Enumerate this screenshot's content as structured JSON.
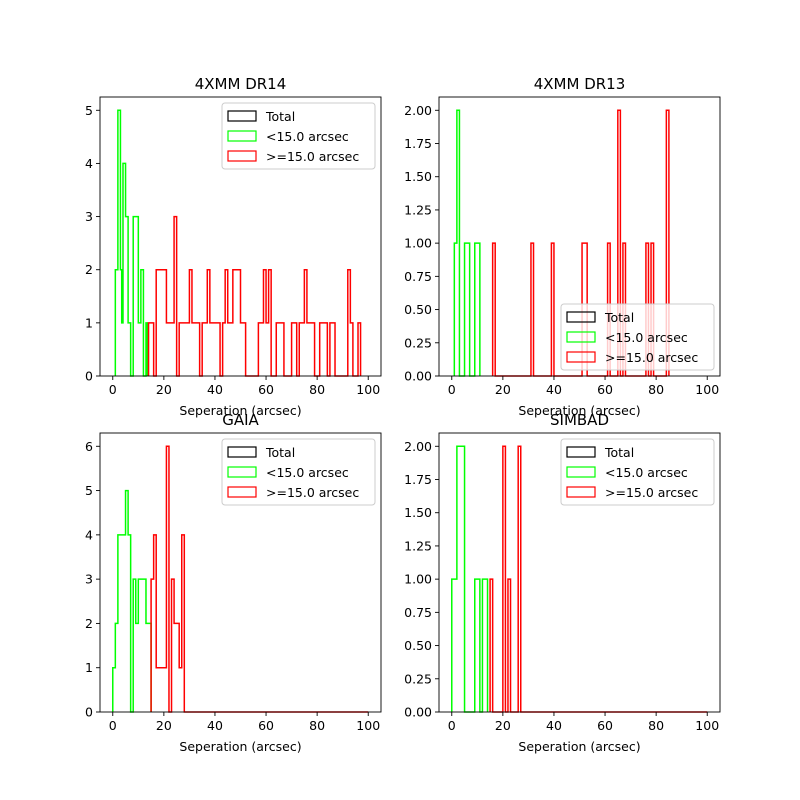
{
  "chart_data": [
    {
      "type": "histogram-step",
      "title": "4XMM DR14",
      "xlabel": "Seperation (arcsec)",
      "ylabel": "",
      "xlim": [
        -5,
        105
      ],
      "ylim": [
        0,
        5.25
      ],
      "xticks": [
        0,
        20,
        40,
        60,
        80,
        100
      ],
      "yticks": [
        0,
        1,
        2,
        3,
        4,
        5
      ],
      "ytick_format": "int",
      "legend_position": "upper right",
      "series": [
        {
          "name": "Total",
          "color": "#000000",
          "points": []
        },
        {
          "name": "<15.0 arcsec",
          "color": "#00ff00",
          "points": [
            [
              1,
              0
            ],
            [
              1,
              2
            ],
            [
              2,
              2
            ],
            [
              2,
              5
            ],
            [
              3,
              5
            ],
            [
              3,
              2
            ],
            [
              3.5,
              2
            ],
            [
              3.5,
              1
            ],
            [
              4,
              1
            ],
            [
              4,
              4
            ],
            [
              5,
              4
            ],
            [
              5,
              3
            ],
            [
              6,
              3
            ],
            [
              6,
              1
            ],
            [
              7,
              1
            ],
            [
              7,
              0
            ],
            [
              8,
              0
            ],
            [
              8,
              3
            ],
            [
              10,
              3
            ],
            [
              10,
              1
            ],
            [
              11,
              1
            ],
            [
              11,
              2
            ],
            [
              12,
              2
            ],
            [
              12,
              0
            ],
            [
              13,
              0
            ],
            [
              13,
              1
            ],
            [
              13.5,
              1
            ],
            [
              13.5,
              0
            ]
          ]
        },
        {
          "name": ">=15.0 arcsec",
          "color": "#ff0000",
          "points": [
            [
              14,
              0
            ],
            [
              14,
              1
            ],
            [
              16,
              1
            ],
            [
              16,
              0
            ],
            [
              17,
              0
            ],
            [
              17,
              2
            ],
            [
              21,
              2
            ],
            [
              21,
              1
            ],
            [
              24,
              1
            ],
            [
              24,
              3
            ],
            [
              25,
              3
            ],
            [
              25,
              0
            ],
            [
              26,
              0
            ],
            [
              26,
              1
            ],
            [
              30,
              1
            ],
            [
              30,
              2
            ],
            [
              31,
              2
            ],
            [
              31,
              1
            ],
            [
              34,
              1
            ],
            [
              34,
              0
            ],
            [
              35,
              0
            ],
            [
              35,
              1
            ],
            [
              37,
              1
            ],
            [
              37,
              2
            ],
            [
              38,
              2
            ],
            [
              38,
              1
            ],
            [
              42,
              1
            ],
            [
              42,
              0
            ],
            [
              43,
              0
            ],
            [
              43,
              1
            ],
            [
              44,
              1
            ],
            [
              44,
              2
            ],
            [
              45,
              2
            ],
            [
              45,
              1
            ],
            [
              47,
              1
            ],
            [
              47,
              2
            ],
            [
              50,
              2
            ],
            [
              50,
              1
            ],
            [
              52,
              1
            ],
            [
              52,
              0
            ],
            [
              57,
              0
            ],
            [
              57,
              1
            ],
            [
              59,
              1
            ],
            [
              59,
              2
            ],
            [
              60,
              2
            ],
            [
              60,
              1
            ],
            [
              61,
              1
            ],
            [
              61,
              2
            ],
            [
              62,
              2
            ],
            [
              62,
              0
            ],
            [
              64,
              0
            ],
            [
              64,
              1
            ],
            [
              67,
              1
            ],
            [
              67,
              0
            ],
            [
              70,
              0
            ],
            [
              70,
              1
            ],
            [
              72,
              1
            ],
            [
              72,
              0
            ],
            [
              73,
              0
            ],
            [
              73,
              1
            ],
            [
              75,
              1
            ],
            [
              75,
              2
            ],
            [
              76,
              2
            ],
            [
              76,
              1
            ],
            [
              79,
              1
            ],
            [
              79,
              0
            ],
            [
              81,
              0
            ],
            [
              81,
              1
            ],
            [
              84,
              1
            ],
            [
              84,
              0
            ],
            [
              85,
              0
            ],
            [
              85,
              1
            ],
            [
              87,
              1
            ],
            [
              87,
              0
            ],
            [
              92,
              0
            ],
            [
              92,
              2
            ],
            [
              93,
              2
            ],
            [
              93,
              1
            ],
            [
              94,
              1
            ],
            [
              94,
              0
            ],
            [
              96,
              0
            ],
            [
              96,
              1
            ],
            [
              97,
              1
            ],
            [
              97,
              0
            ]
          ]
        }
      ]
    },
    {
      "type": "histogram-step",
      "title": "4XMM DR13",
      "xlabel": "Seperation (arcsec)",
      "ylabel": "",
      "xlim": [
        -5,
        105
      ],
      "ylim": [
        0,
        2.1
      ],
      "xticks": [
        0,
        20,
        40,
        60,
        80,
        100
      ],
      "yticks": [
        0,
        0.25,
        0.5,
        0.75,
        1.0,
        1.25,
        1.5,
        1.75,
        2.0
      ],
      "ytick_format": "2dp",
      "legend_position": "lower right",
      "series": [
        {
          "name": "Total",
          "color": "#000000",
          "points": []
        },
        {
          "name": "<15.0 arcsec",
          "color": "#00ff00",
          "points": [
            [
              1,
              0
            ],
            [
              1,
              1
            ],
            [
              2,
              1
            ],
            [
              2,
              2
            ],
            [
              3,
              2
            ],
            [
              3,
              0
            ],
            [
              5,
              0
            ],
            [
              5,
              1
            ],
            [
              7,
              1
            ],
            [
              7,
              0
            ],
            [
              9,
              0
            ],
            [
              9,
              1
            ],
            [
              11,
              1
            ],
            [
              11,
              0
            ]
          ]
        },
        {
          "name": ">=15.0 arcsec",
          "color": "#ff0000",
          "points": [
            [
              16,
              0
            ],
            [
              16,
              1
            ],
            [
              17,
              1
            ],
            [
              17,
              0
            ],
            [
              31,
              0
            ],
            [
              31,
              1
            ],
            [
              32,
              1
            ],
            [
              32,
              0
            ],
            [
              39,
              0
            ],
            [
              39,
              1
            ],
            [
              40,
              1
            ],
            [
              40,
              0
            ],
            [
              51,
              0
            ],
            [
              51,
              1
            ],
            [
              53,
              1
            ],
            [
              53,
              0
            ],
            [
              61,
              0
            ],
            [
              61,
              1
            ],
            [
              62,
              1
            ],
            [
              62,
              0
            ],
            [
              65,
              0
            ],
            [
              65,
              2
            ],
            [
              66,
              2
            ],
            [
              66,
              0
            ],
            [
              67,
              0
            ],
            [
              67,
              1
            ],
            [
              68,
              1
            ],
            [
              68,
              0
            ],
            [
              76,
              0
            ],
            [
              76,
              1
            ],
            [
              77,
              1
            ],
            [
              77,
              0
            ],
            [
              78,
              0
            ],
            [
              78,
              1
            ],
            [
              79,
              1
            ],
            [
              79,
              0
            ],
            [
              84,
              0
            ],
            [
              84,
              2
            ],
            [
              85,
              2
            ],
            [
              85,
              0
            ]
          ]
        }
      ]
    },
    {
      "type": "histogram-step",
      "title": "GAIA",
      "xlabel": "Seperation (arcsec)",
      "ylabel": "",
      "xlim": [
        -5,
        105
      ],
      "ylim": [
        0,
        6.3
      ],
      "xticks": [
        0,
        20,
        40,
        60,
        80,
        100
      ],
      "yticks": [
        0,
        1,
        2,
        3,
        4,
        5,
        6
      ],
      "ytick_format": "int",
      "legend_position": "upper right",
      "series": [
        {
          "name": "Total",
          "color": "#000000",
          "points": []
        },
        {
          "name": "<15.0 arcsec",
          "color": "#00ff00",
          "points": [
            [
              0,
              0
            ],
            [
              0,
              1
            ],
            [
              1,
              1
            ],
            [
              1,
              2
            ],
            [
              2,
              2
            ],
            [
              2,
              4
            ],
            [
              5,
              4
            ],
            [
              5,
              5
            ],
            [
              6,
              5
            ],
            [
              6,
              4
            ],
            [
              7,
              4
            ],
            [
              7,
              0
            ],
            [
              8,
              0
            ],
            [
              8,
              3
            ],
            [
              9,
              3
            ],
            [
              9,
              2
            ],
            [
              10,
              2
            ],
            [
              10,
              3
            ],
            [
              13,
              3
            ],
            [
              13,
              2
            ],
            [
              15,
              2
            ],
            [
              15,
              0
            ]
          ]
        },
        {
          "name": ">=15.0 arcsec",
          "color": "#ff0000",
          "points": [
            [
              15,
              0
            ],
            [
              15,
              3
            ],
            [
              16,
              3
            ],
            [
              16,
              4
            ],
            [
              17,
              4
            ],
            [
              17,
              1
            ],
            [
              21,
              1
            ],
            [
              21,
              6
            ],
            [
              22,
              6
            ],
            [
              22,
              0
            ],
            [
              23,
              0
            ],
            [
              23,
              3
            ],
            [
              24,
              3
            ],
            [
              24,
              2
            ],
            [
              26,
              2
            ],
            [
              26,
              1
            ],
            [
              27,
              1
            ],
            [
              27,
              4
            ],
            [
              28,
              4
            ],
            [
              28,
              0
            ],
            [
              100,
              0
            ]
          ]
        }
      ]
    },
    {
      "type": "histogram-step",
      "title": "SIMBAD",
      "xlabel": "Seperation (arcsec)",
      "ylabel": "",
      "xlim": [
        -5,
        105
      ],
      "ylim": [
        0,
        2.1
      ],
      "xticks": [
        0,
        20,
        40,
        60,
        80,
        100
      ],
      "yticks": [
        0,
        0.25,
        0.5,
        0.75,
        1.0,
        1.25,
        1.5,
        1.75,
        2.0
      ],
      "ytick_format": "2dp",
      "legend_position": "upper right",
      "series": [
        {
          "name": "Total",
          "color": "#000000",
          "points": []
        },
        {
          "name": "<15.0 arcsec",
          "color": "#00ff00",
          "points": [
            [
              0,
              0
            ],
            [
              0,
              1
            ],
            [
              2,
              1
            ],
            [
              2,
              2
            ],
            [
              5,
              2
            ],
            [
              5,
              0
            ],
            [
              9,
              0
            ],
            [
              9,
              1
            ],
            [
              11,
              1
            ],
            [
              11,
              0
            ],
            [
              12,
              0
            ],
            [
              12,
              1
            ],
            [
              14,
              1
            ],
            [
              14,
              0
            ]
          ]
        },
        {
          "name": ">=15.0 arcsec",
          "color": "#ff0000",
          "points": [
            [
              15,
              0
            ],
            [
              15,
              1
            ],
            [
              16,
              1
            ],
            [
              16,
              0
            ],
            [
              20,
              0
            ],
            [
              20,
              2
            ],
            [
              21,
              2
            ],
            [
              21,
              0
            ],
            [
              22,
              0
            ],
            [
              22,
              1
            ],
            [
              23,
              1
            ],
            [
              23,
              0
            ],
            [
              26,
              0
            ],
            [
              26,
              2
            ],
            [
              27,
              2
            ],
            [
              27,
              0
            ],
            [
              100,
              0
            ]
          ]
        }
      ]
    }
  ]
}
